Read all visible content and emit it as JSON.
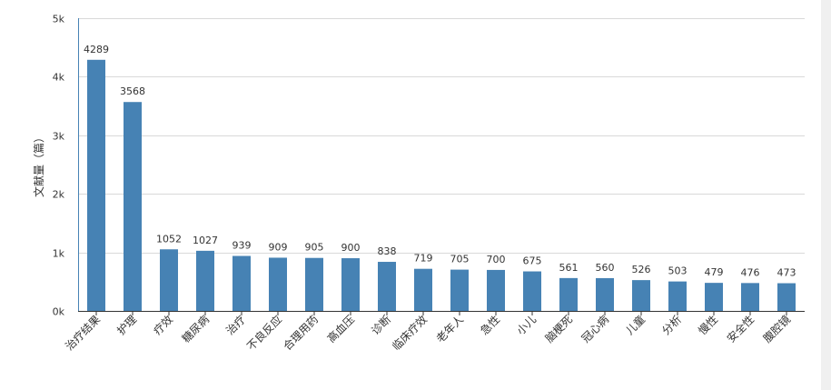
{
  "chart_data": {
    "type": "bar",
    "ylabel": "文献量（篇）",
    "ylim": [
      0,
      5000
    ],
    "grid": true,
    "color": "#4682b4",
    "y_ticks": [
      {
        "value": 0,
        "label": "0k"
      },
      {
        "value": 1000,
        "label": "1k"
      },
      {
        "value": 2000,
        "label": "2k"
      },
      {
        "value": 3000,
        "label": "3k"
      },
      {
        "value": 4000,
        "label": "4k"
      },
      {
        "value": 5000,
        "label": "5k"
      }
    ],
    "categories": [
      "治疗结果",
      "护理",
      "疗效",
      "糖尿病",
      "治疗",
      "不良反应",
      "合理用药",
      "高血压",
      "诊断",
      "临床疗效",
      "老年人",
      "急性",
      "小儿",
      "脑梗死",
      "冠心病",
      "儿童",
      "分析",
      "慢性",
      "安全性",
      "腹腔镜"
    ],
    "values": [
      4289,
      3568,
      1052,
      1027,
      939,
      909,
      905,
      900,
      838,
      719,
      705,
      700,
      675,
      561,
      560,
      526,
      503,
      479,
      476,
      473
    ]
  }
}
